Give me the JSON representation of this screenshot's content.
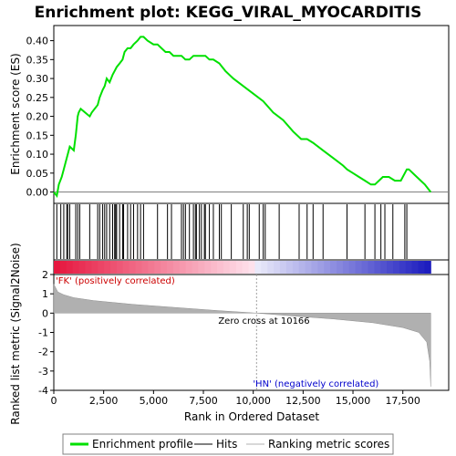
{
  "chart_data": {
    "type": "line",
    "title": "Enrichment plot: KEGG_VIRAL_MYOCARDITIS",
    "xlabel": "Rank in Ordered Dataset",
    "ylabel_top": "Enrichment score (ES)",
    "ylabel_bottom": "Ranked list metric (Signal2Noise)",
    "xlim": [
      0,
      19800
    ],
    "x_ticks": [
      0,
      2500,
      5000,
      7500,
      10000,
      12500,
      15000,
      17500
    ],
    "x_tick_labels": [
      "0",
      "2,500",
      "5,000",
      "7,500",
      "10,000",
      "12,500",
      "15,000",
      "17,500"
    ],
    "es_ylim": [
      -0.03,
      0.44
    ],
    "es_ticks": [
      0.0,
      0.05,
      0.1,
      0.15,
      0.2,
      0.25,
      0.3,
      0.35,
      0.4
    ],
    "es_tick_labels": [
      "0.00",
      "0.05",
      "0.10",
      "0.15",
      "0.20",
      "0.25",
      "0.30",
      "0.35",
      "0.40"
    ],
    "metric_ylim": [
      -4,
      2
    ],
    "metric_ticks": [
      2,
      1,
      0,
      -1,
      -2,
      -3,
      -4
    ],
    "metric_tick_labels": [
      "2",
      "1",
      "0",
      "-1",
      "-2",
      "-3",
      "-4"
    ],
    "series": [
      {
        "name": "Enrichment profile",
        "color": "#00e000",
        "x": [
          0,
          150,
          250,
          400,
          500,
          650,
          700,
          800,
          1000,
          1100,
          1200,
          1250,
          1350,
          1800,
          1900,
          2200,
          2300,
          2450,
          2550,
          2650,
          2800,
          2950,
          3050,
          3150,
          3300,
          3450,
          3550,
          3700,
          3850,
          4000,
          4200,
          4350,
          4500,
          4700,
          5000,
          5200,
          5400,
          5600,
          5800,
          6000,
          6200,
          6400,
          6600,
          6800,
          7000,
          7200,
          7400,
          7600,
          7800,
          8000,
          8300,
          8600,
          9000,
          9500,
          10000,
          10500,
          11000,
          11500,
          12000,
          12400,
          12700,
          13000,
          13500,
          14000,
          14500,
          14700,
          15000,
          15300,
          15600,
          15900,
          16100,
          16300,
          16500,
          16800,
          17100,
          17400,
          17700,
          17800,
          18200,
          18600,
          18900
        ],
        "y": [
          0.0,
          -0.01,
          0.02,
          0.04,
          0.06,
          0.09,
          0.1,
          0.12,
          0.11,
          0.15,
          0.2,
          0.21,
          0.22,
          0.2,
          0.21,
          0.23,
          0.25,
          0.27,
          0.28,
          0.3,
          0.29,
          0.31,
          0.32,
          0.33,
          0.34,
          0.35,
          0.37,
          0.38,
          0.38,
          0.39,
          0.4,
          0.41,
          0.41,
          0.4,
          0.39,
          0.39,
          0.38,
          0.37,
          0.37,
          0.36,
          0.36,
          0.36,
          0.35,
          0.35,
          0.36,
          0.36,
          0.36,
          0.36,
          0.35,
          0.35,
          0.34,
          0.32,
          0.3,
          0.28,
          0.26,
          0.24,
          0.21,
          0.19,
          0.16,
          0.14,
          0.14,
          0.13,
          0.11,
          0.09,
          0.07,
          0.06,
          0.05,
          0.04,
          0.03,
          0.02,
          0.02,
          0.03,
          0.04,
          0.04,
          0.03,
          0.03,
          0.06,
          0.06,
          0.04,
          0.02,
          0.0
        ]
      }
    ],
    "hits": [
      150,
      350,
      500,
      650,
      700,
      800,
      1100,
      1200,
      1300,
      1800,
      2200,
      2300,
      2450,
      2550,
      2650,
      2800,
      2950,
      3050,
      3100,
      3150,
      3300,
      3450,
      3500,
      3700,
      3850,
      4000,
      4200,
      4350,
      4500,
      5200,
      5700,
      5900,
      6400,
      6500,
      6600,
      6800,
      7000,
      7100,
      7150,
      7300,
      7400,
      7550,
      7600,
      7800,
      8000,
      8300,
      8400,
      8900,
      9500,
      9700,
      9800,
      10300,
      10500,
      10600,
      11300,
      12300,
      12700,
      13000,
      13500,
      14700,
      15600,
      16100,
      16400,
      16600,
      17000,
      17600,
      17700
    ],
    "zero_cross_label": "Zero cross at 10166",
    "zero_cross_x": 10166,
    "pos_label": "'FK' (positively correlated)",
    "neg_label": "'HN' (negatively correlated)",
    "metric_profile": {
      "x": [
        0,
        200,
        500,
        1000,
        2000,
        4000,
        6000,
        8000,
        10166,
        12000,
        14000,
        16000,
        17500,
        18300,
        18700,
        18850,
        18900
      ],
      "y": [
        1.5,
        1.1,
        0.95,
        0.8,
        0.65,
        0.45,
        0.3,
        0.15,
        0.0,
        -0.15,
        -0.3,
        -0.5,
        -0.75,
        -1.0,
        -1.5,
        -2.5,
        -3.8
      ]
    },
    "legend": [
      "Enrichment profile",
      "Hits",
      "Ranking metric scores"
    ],
    "colors": {
      "profile": "#00e000",
      "pos_text": "#cc0000",
      "neg_text": "#0000cc",
      "metric_fill": "#b0b0b0",
      "zero_line": "#a0a0a0"
    }
  }
}
